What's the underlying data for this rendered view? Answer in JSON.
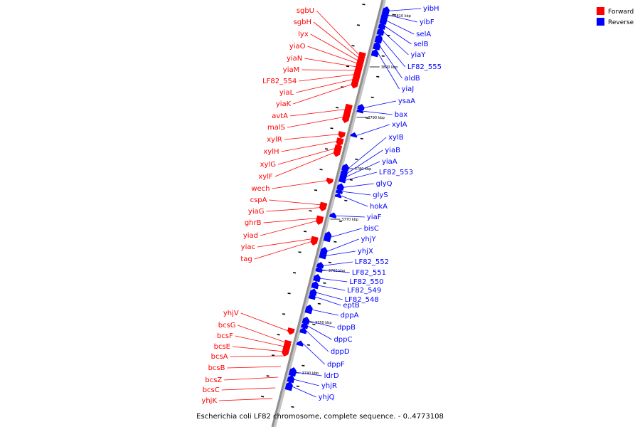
{
  "caption": "Escherichia coli LF82 chromosome, complete sequence. - 0..4773108",
  "legend": [
    {
      "label": "Forward",
      "color": "#ff0000"
    },
    {
      "label": "Reverse",
      "color": "#0000ff"
    }
  ],
  "colors": {
    "forward": "#ff0000",
    "reverse": "#0000ff",
    "backbone": "#909090"
  },
  "ruler": [
    "3810 kbp",
    "3800 kbp",
    "3790 kbp",
    "3780 kbp",
    "3770 kbp",
    "3760 kbp",
    "3750 kbp",
    "3740 kbp"
  ],
  "forward_genes": [
    "sgbU",
    "sgbH",
    "lyx",
    "yiaO",
    "yiaN",
    "yiaM",
    "LF82_554",
    "yiaL",
    "yiaK",
    "avtA",
    "malS",
    "xylR",
    "xylH",
    "xylG",
    "xylF",
    "wech",
    "cspA",
    "yiaG",
    "ghrB",
    "yiad",
    "yiac",
    "tag",
    "yhjV",
    "bcsG",
    "bcsF",
    "bcsE",
    "bcsA",
    "bcsB",
    "bcsZ",
    "bcsC",
    "yhjK"
  ],
  "reverse_genes": [
    "yibH",
    "yibF",
    "selA",
    "selB",
    "yiaY",
    "LF82_555",
    "aldB",
    "yiaJ",
    "ysaA",
    "bax",
    "xylA",
    "xylB",
    "yiaB",
    "yiaA",
    "LF82_553",
    "glyQ",
    "glyS",
    "hokA",
    "yiaF",
    "bisC",
    "yhjY",
    "yhjX",
    "LF82_552",
    "LF82_551",
    "LF82_550",
    "LF82_549",
    "LF82_548",
    "eptB",
    "dppA",
    "dppB",
    "dppC",
    "dppD",
    "dppF",
    "ldrD",
    "yhjR",
    "yhjQ"
  ]
}
